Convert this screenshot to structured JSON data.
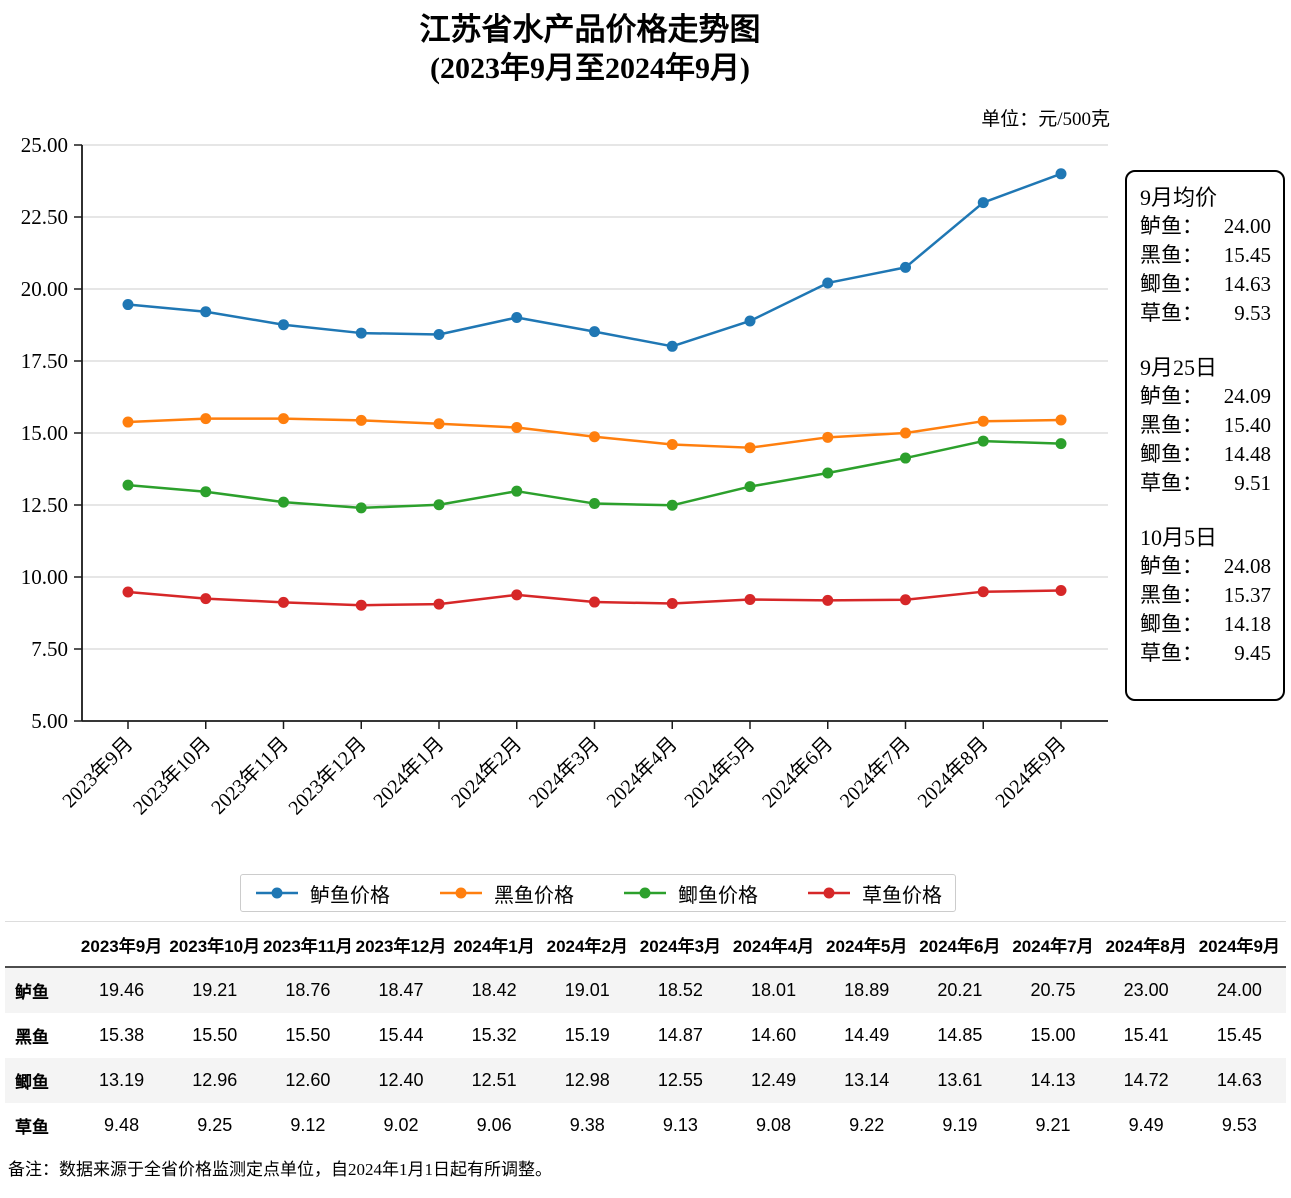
{
  "page": {
    "title": "江苏省水产品价格走势图",
    "subtitle": "(2023年9月至2024年9月)",
    "unit_label": "单位：元/500克",
    "footer_note": "备注：数据来源于全省价格监测定点单位，自2024年1月1日起有所调整。"
  },
  "chart_data": {
    "type": "line",
    "title": "江苏省水产品价格走势图",
    "subtitle": "(2023年9月至2024年9月)",
    "unit": "元/500克",
    "categories": [
      "2023年9月",
      "2023年10月",
      "2023年11月",
      "2023年12月",
      "2024年1月",
      "2024年2月",
      "2024年3月",
      "2024年4月",
      "2024年5月",
      "2024年6月",
      "2024年7月",
      "2024年8月",
      "2024年9月"
    ],
    "series": [
      {
        "name": "鲈鱼价格",
        "short_name": "鲈鱼",
        "color": "#1f77b4",
        "values": [
          19.46,
          19.21,
          18.76,
          18.47,
          18.42,
          19.01,
          18.52,
          18.01,
          18.89,
          20.21,
          20.75,
          23.0,
          24.0
        ]
      },
      {
        "name": "黑鱼价格",
        "short_name": "黑鱼",
        "color": "#ff7f0e",
        "values": [
          15.38,
          15.5,
          15.5,
          15.44,
          15.32,
          15.19,
          14.87,
          14.6,
          14.49,
          14.85,
          15.0,
          15.41,
          15.45
        ]
      },
      {
        "name": "鲫鱼价格",
        "short_name": "鲫鱼",
        "color": "#2ca02c",
        "values": [
          13.19,
          12.96,
          12.6,
          12.4,
          12.51,
          12.98,
          12.55,
          12.49,
          13.14,
          13.61,
          14.13,
          14.72,
          14.63
        ]
      },
      {
        "name": "草鱼价格",
        "short_name": "草鱼",
        "color": "#d62728",
        "values": [
          9.48,
          9.25,
          9.12,
          9.02,
          9.06,
          9.38,
          9.13,
          9.08,
          9.22,
          9.19,
          9.21,
          9.49,
          9.53
        ]
      }
    ],
    "ylim": [
      5.0,
      25.0
    ],
    "ytick_step": 2.5,
    "grid": true,
    "legend_position": "bottom",
    "grid_color": "#cccccc",
    "axis_color": "#1a1a1a"
  },
  "info_box": {
    "sections": [
      {
        "title": "9月均价",
        "rows": [
          {
            "label": "鲈鱼：",
            "value": "24.00"
          },
          {
            "label": "黑鱼：",
            "value": "15.45"
          },
          {
            "label": "鲫鱼：",
            "value": "14.63"
          },
          {
            "label": "草鱼：",
            "value": "9.53"
          }
        ]
      },
      {
        "title": "9月25日",
        "rows": [
          {
            "label": "鲈鱼：",
            "value": "24.09"
          },
          {
            "label": "黑鱼：",
            "value": "15.40"
          },
          {
            "label": "鲫鱼：",
            "value": "14.48"
          },
          {
            "label": "草鱼：",
            "value": "9.51"
          }
        ]
      },
      {
        "title": "10月5日",
        "rows": [
          {
            "label": "鲈鱼：",
            "value": "24.08"
          },
          {
            "label": "黑鱼：",
            "value": "15.37"
          },
          {
            "label": "鲫鱼：",
            "value": "14.18"
          },
          {
            "label": "草鱼：",
            "value": "9.45"
          }
        ]
      }
    ]
  },
  "table": {
    "corner": "",
    "columns": [
      "2023年9月",
      "2023年10月",
      "2023年11月",
      "2023年12月",
      "2024年1月",
      "2024年2月",
      "2024年3月",
      "2024年4月",
      "2024年5月",
      "2024年6月",
      "2024年7月",
      "2024年8月",
      "2024年9月"
    ],
    "rows": [
      {
        "label": "鲈鱼",
        "values": [
          19.46,
          19.21,
          18.76,
          18.47,
          18.42,
          19.01,
          18.52,
          18.01,
          18.89,
          20.21,
          20.75,
          23.0,
          24.0
        ]
      },
      {
        "label": "黑鱼",
        "values": [
          15.38,
          15.5,
          15.5,
          15.44,
          15.32,
          15.19,
          14.87,
          14.6,
          14.49,
          14.85,
          15.0,
          15.41,
          15.45
        ]
      },
      {
        "label": "鲫鱼",
        "values": [
          13.19,
          12.96,
          12.6,
          12.4,
          12.51,
          12.98,
          12.55,
          12.49,
          13.14,
          13.61,
          14.13,
          14.72,
          14.63
        ]
      },
      {
        "label": "草鱼",
        "values": [
          9.48,
          9.25,
          9.12,
          9.02,
          9.06,
          9.38,
          9.13,
          9.08,
          9.22,
          9.19,
          9.21,
          9.49,
          9.53
        ]
      }
    ]
  }
}
